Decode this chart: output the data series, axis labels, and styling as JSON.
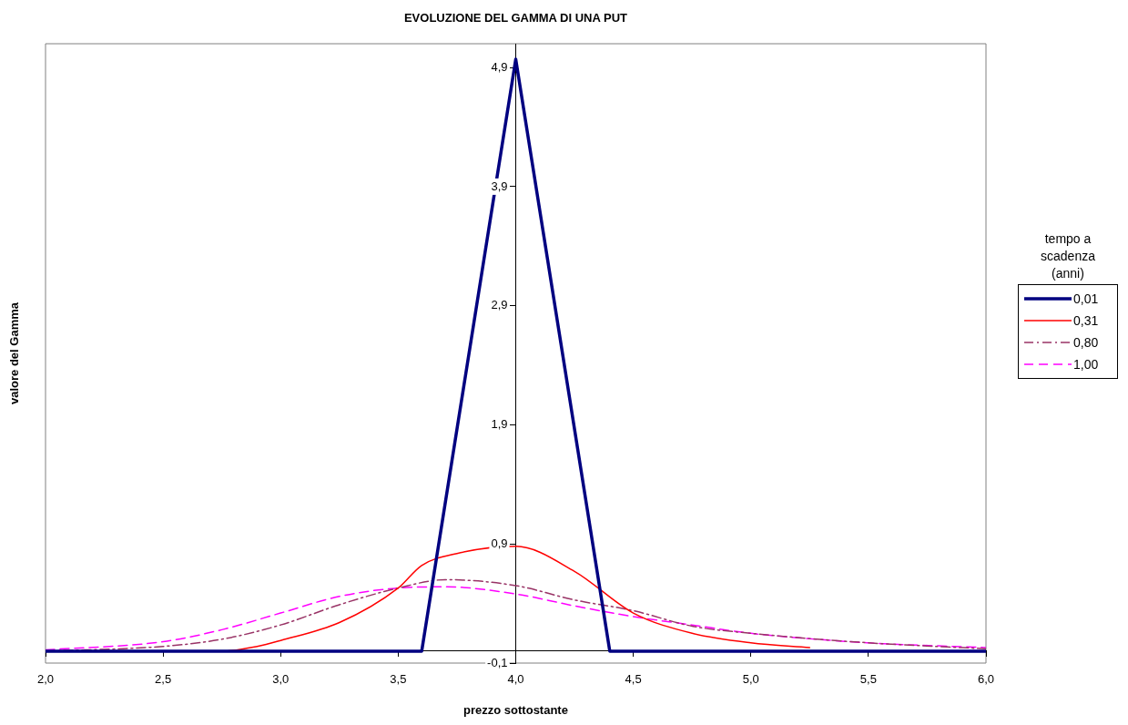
{
  "chart_data": {
    "type": "line",
    "title": "EVOLUZIONE DEL GAMMA DI UNA PUT",
    "xlabel": "prezzo sottostante",
    "ylabel": "valore del Gamma",
    "legend_title": "tempo a scadenza (anni)",
    "legend": "right",
    "grid": false,
    "marker": "none",
    "xlim": [
      2.0,
      6.0
    ],
    "xticks": [
      {
        "value": 2.0,
        "label": "2,0"
      },
      {
        "value": 2.5,
        "label": "2,5"
      },
      {
        "value": 3.0,
        "label": "3,0"
      },
      {
        "value": 3.5,
        "label": "3,5"
      },
      {
        "value": 4.0,
        "label": "4,0"
      },
      {
        "value": 4.5,
        "label": "4,5"
      },
      {
        "value": 5.0,
        "label": "5,0"
      },
      {
        "value": 5.5,
        "label": "5,5"
      },
      {
        "value": 6.0,
        "label": "6,0"
      }
    ],
    "ylim": [
      -0.1,
      5.1
    ],
    "yticks": [
      {
        "value": -0.1,
        "label": "-0,1"
      },
      {
        "value": 0.9,
        "label": "0,9"
      },
      {
        "value": 1.9,
        "label": "1,9"
      },
      {
        "value": 2.9,
        "label": "2,9"
      },
      {
        "value": 3.9,
        "label": "3,9"
      },
      {
        "value": 4.9,
        "label": "4,9"
      }
    ],
    "series": [
      {
        "name": "0,01",
        "color": "#000080",
        "line_style": "solid",
        "x": [
          2.0,
          3.6,
          4.0,
          4.4,
          6.0
        ],
        "values": [
          0,
          0,
          4.97,
          0,
          0
        ]
      },
      {
        "name": "0,31",
        "color": "#ff0000",
        "line_style": "solid",
        "x": [
          2.0,
          2.5,
          2.75,
          2.9,
          3.0,
          3.25,
          3.5,
          3.6,
          3.75,
          4.0,
          4.25,
          4.5,
          4.75,
          5.0,
          5.25
        ],
        "values": [
          0,
          0,
          0,
          0.04,
          0.09,
          0.24,
          0.53,
          0.72,
          0.82,
          0.88,
          0.67,
          0.32,
          0.15,
          0.07,
          0.03
        ]
      },
      {
        "name": "0,80",
        "color": "#993366",
        "line_style": "dashdot",
        "x": [
          2.0,
          2.5,
          2.75,
          3.0,
          3.25,
          3.5,
          3.7,
          4.0,
          4.25,
          4.5,
          4.75,
          5.0,
          5.5,
          6.0
        ],
        "values": [
          0,
          0.04,
          0.1,
          0.22,
          0.39,
          0.53,
          0.6,
          0.55,
          0.43,
          0.34,
          0.21,
          0.15,
          0.07,
          0.02
        ]
      },
      {
        "name": "1,00",
        "color": "#ff00ff",
        "line_style": "dashed",
        "x": [
          2.0,
          2.5,
          2.75,
          3.0,
          3.25,
          3.5,
          3.7,
          4.0,
          4.25,
          4.5,
          4.75,
          5.0,
          5.5,
          6.0
        ],
        "values": [
          0.01,
          0.08,
          0.18,
          0.32,
          0.46,
          0.53,
          0.54,
          0.48,
          0.38,
          0.29,
          0.22,
          0.15,
          0.07,
          0.03
        ]
      }
    ]
  }
}
